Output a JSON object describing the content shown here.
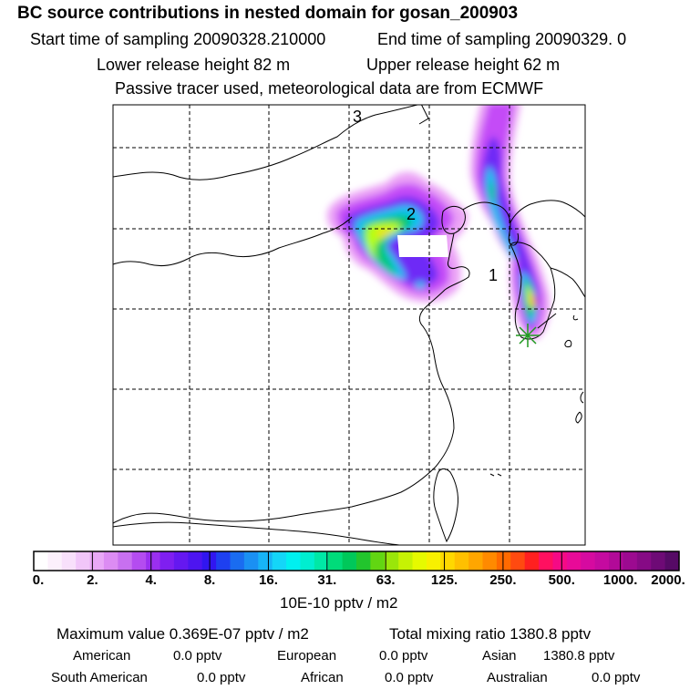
{
  "title": "BC  source contributions in nested domain for gosan_200903",
  "header": {
    "start_label": "Start time of sampling 20090328.210000",
    "end_label": "End time of sampling 20090329.     0",
    "lower_label": "Lower release height   82 m",
    "upper_label": "Upper release height   62 m",
    "tracer_line": "Passive tracer used, meteorological data are from ECMWF"
  },
  "map": {
    "region_labels": [
      "3",
      "2",
      "1"
    ],
    "receptor_marker": "gosan-station-star",
    "plume_colors": [
      "#e98ff5",
      "#c040ff",
      "#7030ff",
      "#00e0ff",
      "#00c86e",
      "#b9ff00",
      "#ffd800",
      "#ff7b00",
      "#ff1a1a"
    ]
  },
  "colorbar": {
    "tick_labels": [
      "0.",
      "2.",
      "4.",
      "8.",
      "16.",
      "31.",
      "63.",
      "125.",
      "250.",
      "500.",
      "1000.",
      "2000."
    ],
    "units": "10E-10 pptv / m2",
    "colors": [
      "#ffffff",
      "#fcf0fc",
      "#f8e0fb",
      "#f1c6f9",
      "#e9a8f7",
      "#dc8cf3",
      "#c870f0",
      "#b44cf0",
      "#9a2ff0",
      "#7f1ff0",
      "#6518f0",
      "#4d15f0",
      "#3116f0",
      "#1e40f0",
      "#1a6cf0",
      "#1a90f3",
      "#17b4f6",
      "#14d6f8",
      "#00f0f0",
      "#00eed0",
      "#00e8a6",
      "#00dc7a",
      "#00c85a",
      "#22c52d",
      "#62d612",
      "#9ae60a",
      "#c6f204",
      "#e6fa00",
      "#f8f000",
      "#ffd800",
      "#ffc000",
      "#ffa600",
      "#ff8a00",
      "#ff6a00",
      "#ff4a10",
      "#ff2020",
      "#ff1060",
      "#f50a85",
      "#e80a98",
      "#d60aa0",
      "#c50aa0",
      "#b20a98",
      "#9c0a90",
      "#860a85",
      "#6e0a76",
      "#560a66"
    ]
  },
  "stats": {
    "max_line": "Maximum value  0.369E-07 pptv / m2",
    "total_line": "Total mixing ratio     1380.8 pptv"
  },
  "sources": [
    {
      "name": "American",
      "value": "0.0 pptv"
    },
    {
      "name": "European",
      "value": "0.0 pptv"
    },
    {
      "name": "Asian",
      "value": "1380.8 pptv"
    },
    {
      "name": "South American",
      "value": "0.0 pptv"
    },
    {
      "name": "African",
      "value": "0.0 pptv"
    },
    {
      "name": "Australian",
      "value": "0.0 pptv"
    }
  ]
}
